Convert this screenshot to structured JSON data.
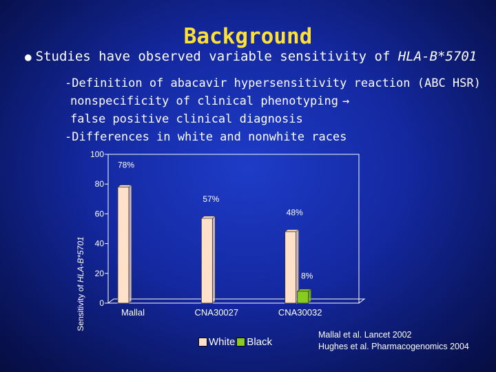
{
  "slide": {
    "title": "Background",
    "bullet_text": "Studies have observed variable sensitivity of ",
    "bullet_gene": "HLA-B*5701",
    "sub_lines": [
      "-Definition of abacavir hypersensitivity reaction (ABC HSR)",
      "nonspecificity of clinical phenotyping",
      "false positive clinical diagnosis",
      "-Differences in white and nonwhite races"
    ],
    "references": [
      "Mallal et al. Lancet 2002",
      "Hughes et al.  Pharmacogenomics 2004"
    ]
  },
  "colors": {
    "title": "#ffe135",
    "series_white": "#ffe0c8",
    "series_black": "#88cc22",
    "plot_border": "#ffffff"
  },
  "chart_data": {
    "type": "bar",
    "categories": [
      "Mallal",
      "CNA30027",
      "CNA30032"
    ],
    "ylabel_prefix": "Sensitivity of ",
    "ylabel_gene": "HLA-B*5701",
    "ylim": [
      0,
      100
    ],
    "yticks": [
      0,
      20,
      40,
      60,
      80,
      100
    ],
    "grid": false,
    "legend_position": "bottom",
    "series": [
      {
        "name": "White",
        "values": [
          78,
          57,
          48
        ],
        "labels": [
          "78%",
          "57%",
          "48%"
        ]
      },
      {
        "name": "Black",
        "values": [
          null,
          null,
          8
        ],
        "labels": [
          "",
          "",
          "8%"
        ]
      }
    ]
  }
}
